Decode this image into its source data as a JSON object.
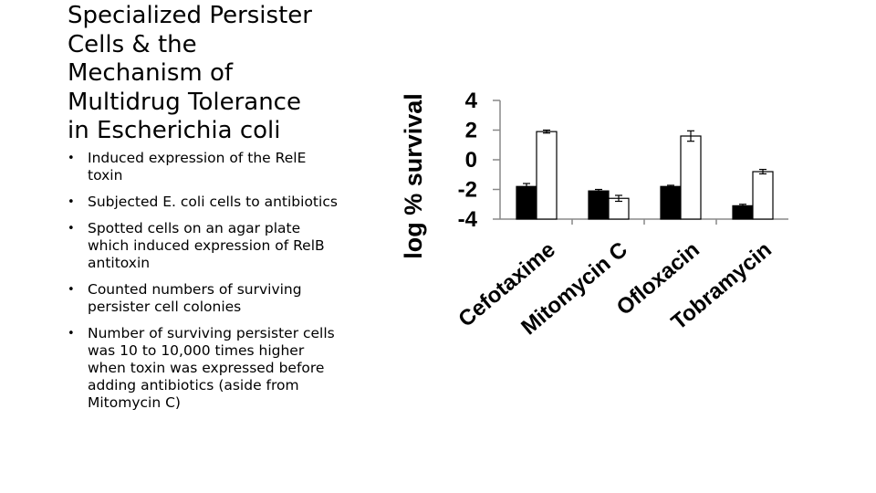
{
  "slide": {
    "title_lines": [
      "Specialized Persister",
      "Cells & the",
      "Mechanism of",
      "Multidrug Tolerance",
      "in Escherichia coli"
    ],
    "bullets": [
      "Induced expression of the RelE toxin",
      "Subjected E. coli cells to antibiotics",
      "Spotted cells on an agar plate which induced expression of RelB antitoxin",
      "Counted numbers of surviving persister cell colonies",
      "Number of surviving persister cells was 10 to 10,000 times higher when toxin was expressed before adding antibiotics (aside from Mitomycin C)"
    ],
    "bullet_glyph": "•"
  },
  "chart_data": {
    "type": "bar",
    "title": "",
    "xlabel": "",
    "ylabel": "log % survival",
    "ylim": [
      -4,
      4
    ],
    "yticks": [
      "4",
      "2",
      "0",
      "-2",
      "-4"
    ],
    "categories": [
      "Cefotaxime",
      "Mitomycin C",
      "Ofloxacin",
      "Tobramycin"
    ],
    "series": [
      {
        "values": [
          -1.8,
          -2.1,
          -1.8,
          -3.1
        ],
        "errors": [
          0.2,
          0.1,
          0.08,
          0.1
        ],
        "color": "#000000"
      },
      {
        "values": [
          1.9,
          -2.6,
          1.6,
          -0.8
        ],
        "errors": [
          0.1,
          0.2,
          0.35,
          0.15
        ],
        "color": "#ffffff"
      }
    ],
    "grid": false,
    "legend": "none"
  }
}
